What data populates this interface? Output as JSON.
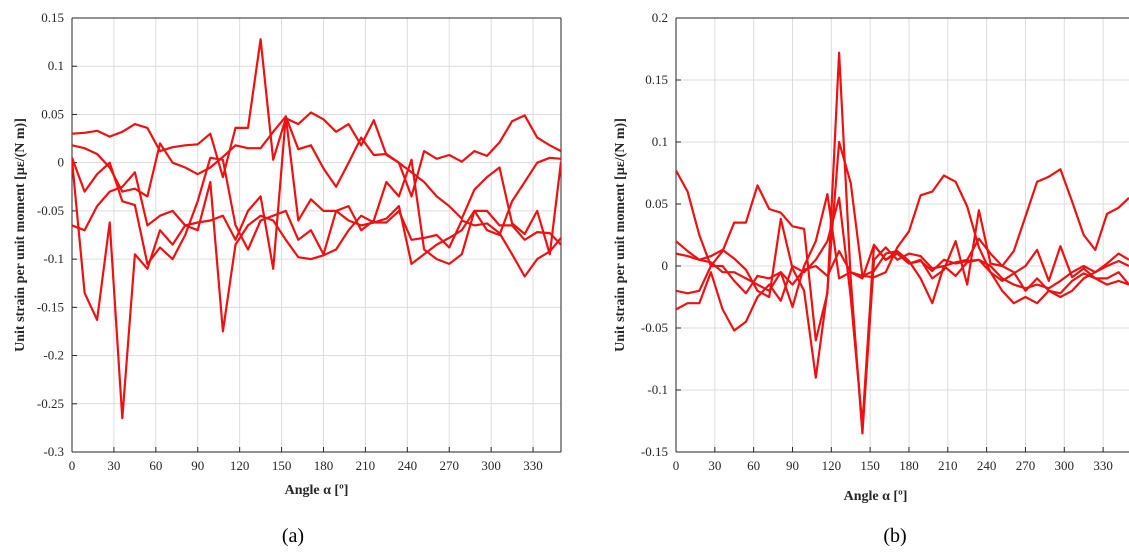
{
  "chart_data": [
    {
      "type": "line",
      "caption": "(a)",
      "xlabel": "Angle α [º]",
      "ylabel": "Unit strain per unit moment [με/(N m)]",
      "xlim": [
        0,
        350
      ],
      "ylim": [
        -0.3,
        0.15
      ],
      "xticks": [
        0,
        30,
        60,
        90,
        120,
        150,
        180,
        210,
        240,
        270,
        300,
        330
      ],
      "xtick_labels": [
        "0",
        "30",
        "60",
        "90",
        "120",
        "150",
        "180",
        "210",
        "240",
        "270",
        "300",
        "330"
      ],
      "yticks": [
        -0.3,
        -0.25,
        -0.2,
        -0.15,
        -0.1,
        -0.05,
        0,
        0.05,
        0.1,
        0.15
      ],
      "ytick_labels": [
        "-0.3",
        "-0.25",
        "-0.2",
        "-0.15",
        "-0.1",
        "-0.05",
        "0",
        "0.05",
        "0.1",
        "0.15"
      ],
      "grid": true,
      "color": "#ee1111",
      "series": [
        {
          "x": [
            0,
            9,
            18,
            27,
            36,
            45,
            54,
            63,
            72,
            81,
            90,
            99,
            108,
            117,
            126,
            135,
            144,
            153,
            162,
            171,
            180,
            189,
            198,
            207,
            216,
            225,
            234,
            243,
            252,
            261,
            270,
            279,
            288,
            297,
            306,
            315,
            324,
            333,
            342,
            350
          ],
          "y": [
            0.03,
            0.031,
            0.033,
            0.027,
            0.032,
            0.04,
            0.036,
            0.012,
            0.016,
            0.018,
            0.019,
            0.03,
            -0.015,
            0.036,
            0.036,
            0.128,
            0.003,
            0.046,
            0.04,
            0.052,
            0.045,
            0.032,
            0.04,
            0.018,
            0.044,
            0.008,
            0.0,
            -0.035,
            0.012,
            0.004,
            0.008,
            0.001,
            0.012,
            0.007,
            0.021,
            0.043,
            0.049,
            0.026,
            0.018,
            0.012
          ]
        },
        {
          "x": [
            0,
            9,
            18,
            27,
            36,
            45,
            54,
            63,
            72,
            81,
            90,
            99,
            108,
            117,
            126,
            135,
            144,
            153,
            162,
            171,
            180,
            189,
            198,
            207,
            216,
            225,
            234,
            243,
            252,
            261,
            270,
            279,
            288,
            297,
            306,
            315,
            324,
            333,
            342,
            350
          ],
          "y": [
            0.018,
            0.015,
            0.009,
            -0.005,
            -0.03,
            -0.027,
            -0.035,
            0.02,
            0.0,
            -0.005,
            -0.012,
            -0.005,
            0.006,
            0.018,
            0.015,
            0.015,
            0.032,
            0.048,
            0.014,
            0.018,
            -0.006,
            -0.025,
            0.0,
            0.026,
            0.008,
            0.009,
            0.0,
            -0.01,
            -0.02,
            -0.035,
            -0.045,
            -0.058,
            -0.028,
            -0.015,
            -0.005,
            -0.063,
            -0.074,
            -0.05,
            -0.095,
            0.001
          ]
        },
        {
          "x": [
            0,
            9,
            18,
            27,
            36,
            45,
            54,
            63,
            72,
            81,
            90,
            99,
            108,
            117,
            126,
            135,
            144,
            153,
            162,
            171,
            180,
            189,
            198,
            207,
            216,
            225,
            234,
            243,
            252,
            261,
            270,
            279,
            288,
            297,
            306,
            315,
            324,
            333,
            342,
            350
          ],
          "y": [
            0.005,
            -0.03,
            -0.012,
            0.0,
            -0.04,
            -0.044,
            -0.105,
            -0.088,
            -0.1,
            -0.075,
            -0.04,
            0.005,
            0.003,
            -0.065,
            -0.09,
            -0.06,
            -0.055,
            -0.05,
            -0.08,
            -0.07,
            -0.095,
            -0.05,
            -0.06,
            -0.065,
            -0.062,
            -0.062,
            -0.05,
            -0.08,
            -0.078,
            -0.075,
            -0.088,
            -0.06,
            -0.065,
            -0.063,
            -0.073,
            -0.095,
            -0.118,
            -0.1,
            -0.092,
            -0.078
          ]
        },
        {
          "x": [
            0,
            9,
            18,
            27,
            36,
            45,
            54,
            63,
            72,
            81,
            90,
            99,
            108,
            117,
            126,
            135,
            144,
            153,
            162,
            171,
            180,
            189,
            198,
            207,
            216,
            225,
            234,
            243,
            252,
            261,
            270,
            279,
            288,
            297,
            306,
            315,
            324,
            333,
            342,
            350
          ],
          "y": [
            0.003,
            -0.135,
            -0.163,
            -0.062,
            -0.265,
            -0.095,
            -0.11,
            -0.07,
            -0.085,
            -0.065,
            -0.07,
            -0.02,
            -0.175,
            -0.085,
            -0.065,
            -0.055,
            -0.06,
            -0.08,
            -0.098,
            -0.1,
            -0.096,
            -0.09,
            -0.07,
            -0.055,
            -0.062,
            -0.058,
            -0.045,
            -0.105,
            -0.095,
            -0.085,
            -0.078,
            -0.07,
            -0.05,
            -0.05,
            -0.065,
            -0.065,
            -0.08,
            -0.072,
            -0.073,
            -0.085
          ]
        },
        {
          "x": [
            0,
            9,
            18,
            27,
            36,
            45,
            54,
            63,
            72,
            81,
            90,
            99,
            108,
            117,
            126,
            135,
            144,
            153,
            162,
            171,
            180,
            189,
            198,
            207,
            216,
            225,
            234,
            243,
            252,
            261,
            270,
            279,
            288,
            297,
            306,
            315,
            324,
            333,
            342,
            350
          ],
          "y": [
            -0.065,
            -0.07,
            -0.045,
            -0.03,
            -0.025,
            -0.01,
            -0.065,
            -0.055,
            -0.05,
            -0.065,
            -0.062,
            -0.06,
            -0.055,
            -0.08,
            -0.05,
            -0.035,
            -0.11,
            0.048,
            -0.06,
            -0.038,
            -0.05,
            -0.05,
            -0.045,
            -0.07,
            -0.06,
            -0.02,
            -0.035,
            0.003,
            -0.09,
            -0.1,
            -0.105,
            -0.095,
            -0.05,
            -0.07,
            -0.075,
            -0.04,
            -0.02,
            0.0,
            0.005,
            0.004
          ]
        }
      ]
    },
    {
      "type": "line",
      "caption": "(b)",
      "xlabel": "Angle α [º]",
      "ylabel": "Unit strain per unit moment [με/(N m)]",
      "xlim": [
        0,
        350
      ],
      "ylim": [
        -0.15,
        0.2
      ],
      "xticks": [
        0,
        30,
        60,
        90,
        120,
        150,
        180,
        210,
        240,
        270,
        300,
        330
      ],
      "xtick_labels": [
        "0",
        "30",
        "60",
        "90",
        "120",
        "150",
        "180",
        "210",
        "240",
        "270",
        "300",
        "330"
      ],
      "yticks": [
        -0.15,
        -0.1,
        -0.05,
        0,
        0.05,
        0.1,
        0.15,
        0.2
      ],
      "ytick_labels": [
        "-0.15",
        "-0.1",
        "-0.05",
        "0",
        "0.05",
        "0.1",
        "0.15",
        "0.2"
      ],
      "grid": true,
      "color": "#ee1111",
      "series": [
        {
          "x": [
            0,
            9,
            18,
            27,
            36,
            45,
            54,
            63,
            72,
            81,
            90,
            99,
            108,
            117,
            126,
            135,
            144,
            153,
            162,
            171,
            180,
            189,
            198,
            207,
            216,
            225,
            234,
            243,
            252,
            261,
            270,
            279,
            288,
            297,
            306,
            315,
            324,
            333,
            342,
            350
          ],
          "y": [
            0.077,
            0.06,
            0.025,
            0.0,
            0.012,
            0.035,
            0.035,
            0.065,
            0.046,
            0.043,
            0.032,
            0.03,
            -0.06,
            -0.022,
            0.172,
            -0.01,
            -0.135,
            0.005,
            0.015,
            0.005,
            0.01,
            0.008,
            -0.002,
            0.0,
            0.003,
            0.005,
            0.022,
            0.01,
            0.0,
            0.012,
            0.04,
            0.068,
            0.072,
            0.078,
            0.052,
            0.025,
            0.013,
            0.042,
            0.047,
            0.055
          ]
        },
        {
          "x": [
            0,
            9,
            18,
            27,
            36,
            45,
            54,
            63,
            72,
            81,
            90,
            99,
            108,
            117,
            126,
            135,
            144,
            153,
            162,
            171,
            180,
            189,
            198,
            207,
            216,
            225,
            234,
            243,
            252,
            261,
            270,
            279,
            288,
            297,
            306,
            315,
            324,
            333,
            342,
            350
          ],
          "y": [
            0.02,
            0.012,
            0.005,
            0.008,
            0.013,
            0.006,
            -0.003,
            -0.02,
            -0.025,
            0.038,
            -0.002,
            -0.02,
            -0.09,
            -0.02,
            0.1,
            0.067,
            -0.008,
            -0.009,
            -0.005,
            0.015,
            0.028,
            0.057,
            0.06,
            0.073,
            0.068,
            0.048,
            0.015,
            -0.005,
            -0.012,
            -0.006,
            0.0,
            0.013,
            -0.012,
            0.016,
            -0.009,
            -0.002,
            -0.01,
            -0.015,
            -0.012,
            -0.015
          ]
        },
        {
          "x": [
            0,
            9,
            18,
            27,
            36,
            45,
            54,
            63,
            72,
            81,
            90,
            99,
            108,
            117,
            126,
            135,
            144,
            153,
            162,
            171,
            180,
            189,
            198,
            207,
            216,
            225,
            234,
            243,
            252,
            261,
            270,
            279,
            288,
            297,
            306,
            315,
            324,
            333,
            342,
            350
          ],
          "y": [
            0.01,
            0.008,
            0.005,
            0.003,
            -0.005,
            -0.005,
            -0.01,
            -0.015,
            -0.02,
            -0.005,
            -0.033,
            0.0,
            0.02,
            0.058,
            -0.01,
            -0.005,
            -0.01,
            0.017,
            0.005,
            0.01,
            0.002,
            0.005,
            -0.01,
            -0.003,
            0.02,
            -0.015,
            0.045,
            0.002,
            0.0,
            -0.005,
            -0.02,
            -0.01,
            -0.02,
            -0.025,
            -0.02,
            -0.01,
            -0.005,
            0.002,
            0.01,
            0.005
          ]
        },
        {
          "x": [
            0,
            9,
            18,
            27,
            36,
            45,
            54,
            63,
            72,
            81,
            90,
            99,
            108,
            117,
            126,
            135,
            144,
            153,
            162,
            171,
            180,
            189,
            198,
            207,
            216,
            225,
            234,
            243,
            252,
            261,
            270,
            279,
            288,
            297,
            306,
            315,
            324,
            333,
            342,
            350
          ],
          "y": [
            -0.035,
            -0.03,
            -0.03,
            -0.005,
            -0.035,
            -0.052,
            -0.045,
            -0.025,
            -0.015,
            -0.028,
            0.0,
            -0.005,
            0.005,
            0.02,
            0.055,
            -0.025,
            -0.128,
            0.017,
            0.005,
            0.012,
            0.004,
            -0.01,
            -0.03,
            0.0,
            -0.008,
            0.003,
            0.005,
            -0.005,
            -0.02,
            -0.03,
            -0.025,
            -0.03,
            -0.02,
            -0.022,
            -0.012,
            -0.006,
            -0.01,
            -0.01,
            -0.005,
            -0.015
          ]
        },
        {
          "x": [
            0,
            9,
            18,
            27,
            36,
            45,
            54,
            63,
            72,
            81,
            90,
            99,
            108,
            117,
            126,
            135,
            144,
            153,
            162,
            171,
            180,
            189,
            198,
            207,
            216,
            225,
            234,
            243,
            252,
            261,
            270,
            279,
            288,
            297,
            306,
            315,
            324,
            333,
            342,
            350
          ],
          "y": [
            -0.02,
            -0.022,
            -0.02,
            0.0,
            0.0,
            -0.012,
            -0.022,
            -0.008,
            -0.01,
            -0.005,
            -0.015,
            -0.003,
            0.0,
            -0.008,
            0.012,
            -0.005,
            -0.008,
            -0.004,
            0.01,
            0.012,
            0.002,
            0.004,
            -0.004,
            0.005,
            0.002,
            0.004,
            0.005,
            0.0,
            -0.01,
            -0.015,
            -0.018,
            -0.015,
            -0.018,
            -0.012,
            -0.005,
            0.0,
            -0.005,
            0.0,
            0.004,
            0.0
          ]
        }
      ]
    }
  ]
}
